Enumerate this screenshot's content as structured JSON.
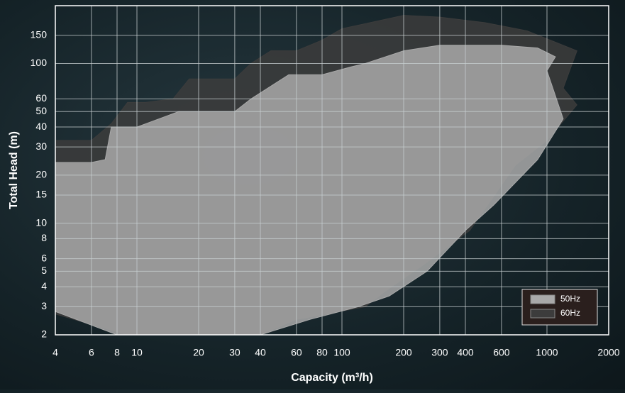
{
  "chart_data": {
    "type": "area",
    "x_label": "Capacity (m³/h)",
    "y_label": "Total Head (m)",
    "log_x": true,
    "log_y": true,
    "grid": true,
    "legend": "lower right",
    "xlim": [
      4,
      2000
    ],
    "ylim": [
      2,
      230
    ],
    "xticks": [
      4,
      6,
      8,
      10,
      20,
      30,
      40,
      60,
      80,
      100,
      200,
      300,
      400,
      600,
      1000,
      2000
    ],
    "yticks": [
      2,
      3,
      4,
      5,
      6,
      8,
      10,
      15,
      20,
      30,
      40,
      50,
      60,
      100,
      150
    ],
    "series": [
      {
        "name": "60Hz",
        "color": "#3c3c3c",
        "x": [
          4,
          6,
          7.5,
          9,
          11,
          15,
          18,
          30,
          36,
          45,
          60,
          80,
          100,
          200,
          300,
          500,
          800,
          1400,
          1200,
          1400,
          1000,
          700,
          420,
          250,
          160,
          130,
          60,
          40,
          18,
          9,
          4
        ],
        "y": [
          33,
          33,
          42,
          57,
          57,
          60,
          80,
          80,
          100,
          120,
          120,
          140,
          165,
          200,
          195,
          180,
          160,
          120,
          70,
          55,
          33,
          23,
          9,
          5.5,
          3.7,
          3,
          2.5,
          2,
          2,
          2,
          2.7
        ]
      },
      {
        "name": "50Hz",
        "color": "#a9a9a9",
        "x": [
          4,
          6,
          7,
          7.5,
          10,
          16,
          30,
          36,
          55,
          80,
          110,
          130,
          200,
          300,
          600,
          900,
          1100,
          1000,
          1200,
          900,
          550,
          400,
          260,
          170,
          120,
          70,
          40,
          18,
          8,
          4
        ],
        "y": [
          24,
          24,
          25,
          40,
          40,
          50,
          50,
          60,
          85,
          85,
          95,
          100,
          120,
          130,
          130,
          125,
          110,
          90,
          45,
          25,
          13,
          9,
          5,
          3.5,
          3,
          2.5,
          2,
          2,
          2,
          2.8
        ]
      }
    ]
  }
}
